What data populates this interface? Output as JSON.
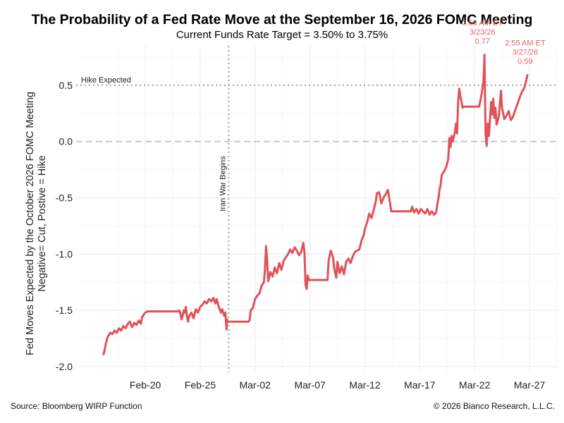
{
  "chart_data": {
    "type": "line",
    "title": "The Probability of a Fed Rate Move at the September 16, 2026 FOMC Meeting",
    "subtitle": "Current Funds Rate Target = 3.50% to 3.75%",
    "ylabel_line1": "Fed Moves Expected by the  October 2026 FOMC Meeting",
    "ylabel_line2": "Negative= Cut, Postive = Hike",
    "xlabel": "",
    "ylim": [
      -2.05,
      0.85
    ],
    "xlim_days": [
      -3.3,
      40.5
    ],
    "x_origin_date": "Feb-17",
    "y_ticks": [
      {
        "value": 0.5,
        "label": "0.5"
      },
      {
        "value": 0.0,
        "label": "0.0"
      },
      {
        "value": -0.5,
        "label": "-0.5"
      },
      {
        "value": -1.0,
        "label": "-1.0"
      },
      {
        "value": -1.5,
        "label": "-1.5"
      },
      {
        "value": -2.0,
        "label": "-2.0"
      }
    ],
    "x_ticks": [
      {
        "day": 3,
        "label": "Feb-20"
      },
      {
        "day": 8,
        "label": "Feb-25"
      },
      {
        "day": 13,
        "label": "Mar-02"
      },
      {
        "day": 18,
        "label": "Mar-07"
      },
      {
        "day": 23,
        "label": "Mar-12"
      },
      {
        "day": 28,
        "label": "Mar-17"
      },
      {
        "day": 33,
        "label": "Mar-22"
      },
      {
        "day": 38,
        "label": "Mar-27"
      }
    ],
    "grid": true,
    "line_color": "#e05259",
    "reference_lines": [
      {
        "orientation": "horizontal",
        "value": 0.5,
        "style": "dotted",
        "label": "Hike Expected"
      },
      {
        "orientation": "horizontal",
        "value": 0.0,
        "style": "dashed",
        "label": ""
      },
      {
        "orientation": "vertical",
        "day": 10.6,
        "style": "dotted",
        "label": "Iran War Begins"
      }
    ],
    "annotations": [
      {
        "day": 33.9,
        "value": 0.77,
        "lines": [
          "3:55 AM ET",
          "3/23/26",
          "0.77"
        ]
      },
      {
        "day": 37.8,
        "value": 0.59,
        "lines": [
          "2:55 AM ET",
          "3/27/26",
          "0.59"
        ]
      }
    ],
    "series": [
      {
        "name": "Fed moves expected",
        "points": [
          [
            -0.8,
            -1.89
          ],
          [
            -0.7,
            -1.85
          ],
          [
            -0.6,
            -1.8
          ],
          [
            -0.5,
            -1.76
          ],
          [
            -0.4,
            -1.73
          ],
          [
            -0.2,
            -1.7
          ],
          [
            0.0,
            -1.71
          ],
          [
            0.2,
            -1.68
          ],
          [
            0.4,
            -1.7
          ],
          [
            0.6,
            -1.66
          ],
          [
            0.8,
            -1.68
          ],
          [
            1.0,
            -1.64
          ],
          [
            1.2,
            -1.66
          ],
          [
            1.4,
            -1.62
          ],
          [
            1.6,
            -1.6
          ],
          [
            1.8,
            -1.65
          ],
          [
            2.0,
            -1.61
          ],
          [
            2.2,
            -1.63
          ],
          [
            2.4,
            -1.59
          ],
          [
            2.6,
            -1.62
          ],
          [
            2.7,
            -1.56
          ],
          [
            2.8,
            -1.55
          ],
          [
            2.9,
            -1.53
          ],
          [
            3.0,
            -1.52
          ],
          [
            3.2,
            -1.51
          ],
          [
            3.4,
            -1.51
          ],
          [
            5.0,
            -1.51
          ],
          [
            6.0,
            -1.51
          ],
          [
            6.1,
            -1.5
          ],
          [
            6.2,
            -1.53
          ],
          [
            6.3,
            -1.58
          ],
          [
            6.4,
            -1.55
          ],
          [
            6.5,
            -1.5
          ],
          [
            6.6,
            -1.52
          ],
          [
            6.7,
            -1.47
          ],
          [
            6.8,
            -1.56
          ],
          [
            6.9,
            -1.6
          ],
          [
            7.0,
            -1.55
          ],
          [
            7.2,
            -1.52
          ],
          [
            7.4,
            -1.57
          ],
          [
            7.6,
            -1.49
          ],
          [
            7.8,
            -1.52
          ],
          [
            8.0,
            -1.47
          ],
          [
            8.2,
            -1.45
          ],
          [
            8.4,
            -1.42
          ],
          [
            8.6,
            -1.44
          ],
          [
            8.8,
            -1.4
          ],
          [
            9.0,
            -1.42
          ],
          [
            9.2,
            -1.39
          ],
          [
            9.4,
            -1.44
          ],
          [
            9.5,
            -1.4
          ],
          [
            9.7,
            -1.47
          ],
          [
            9.9,
            -1.52
          ],
          [
            10.0,
            -1.49
          ],
          [
            10.2,
            -1.55
          ],
          [
            10.3,
            -1.52
          ],
          [
            10.4,
            -1.67
          ],
          [
            10.45,
            -1.58
          ],
          [
            10.5,
            -1.6
          ],
          [
            11.0,
            -1.6
          ],
          [
            12.4,
            -1.6
          ],
          [
            12.5,
            -1.59
          ],
          [
            12.6,
            -1.5
          ],
          [
            12.8,
            -1.48
          ],
          [
            13.0,
            -1.4
          ],
          [
            13.2,
            -1.37
          ],
          [
            13.4,
            -1.35
          ],
          [
            13.6,
            -1.28
          ],
          [
            13.8,
            -1.25
          ],
          [
            13.9,
            -1.14
          ],
          [
            14.0,
            -0.93
          ],
          [
            14.1,
            -1.06
          ],
          [
            14.2,
            -1.24
          ],
          [
            14.4,
            -1.16
          ],
          [
            14.6,
            -1.2
          ],
          [
            14.8,
            -1.12
          ],
          [
            15.0,
            -1.17
          ],
          [
            15.2,
            -1.08
          ],
          [
            15.4,
            -1.14
          ],
          [
            15.6,
            -1.06
          ],
          [
            15.8,
            -1.03
          ],
          [
            16.0,
            -1.0
          ],
          [
            16.2,
            -0.96
          ],
          [
            16.4,
            -0.99
          ],
          [
            16.6,
            -0.94
          ],
          [
            16.8,
            -0.97
          ],
          [
            17.0,
            -1.01
          ],
          [
            17.2,
            -0.98
          ],
          [
            17.4,
            -0.9
          ],
          [
            17.5,
            -0.99
          ],
          [
            17.6,
            -1.27
          ],
          [
            17.7,
            -1.31
          ],
          [
            17.8,
            -1.19
          ],
          [
            17.9,
            -1.23
          ],
          [
            18.0,
            -1.23
          ],
          [
            19.0,
            -1.23
          ],
          [
            19.6,
            -1.23
          ],
          [
            19.7,
            -1.06
          ],
          [
            19.8,
            -1.01
          ],
          [
            19.9,
            -0.97
          ],
          [
            20.1,
            -1.03
          ],
          [
            20.2,
            -1.12
          ],
          [
            20.4,
            -1.21
          ],
          [
            20.5,
            -1.07
          ],
          [
            20.7,
            -1.17
          ],
          [
            20.9,
            -1.11
          ],
          [
            21.1,
            -1.18
          ],
          [
            21.3,
            -1.07
          ],
          [
            21.5,
            -1.04
          ],
          [
            21.7,
            -1.08
          ],
          [
            21.9,
            -1.02
          ],
          [
            22.1,
            -0.98
          ],
          [
            22.3,
            -0.97
          ],
          [
            22.5,
            -0.96
          ],
          [
            22.7,
            -0.88
          ],
          [
            22.9,
            -0.83
          ],
          [
            23.0,
            -0.78
          ],
          [
            23.2,
            -0.72
          ],
          [
            23.4,
            -0.64
          ],
          [
            23.6,
            -0.68
          ],
          [
            23.8,
            -0.61
          ],
          [
            24.0,
            -0.53
          ],
          [
            24.1,
            -0.46
          ],
          [
            24.3,
            -0.45
          ],
          [
            24.5,
            -0.55
          ],
          [
            24.7,
            -0.5
          ],
          [
            24.9,
            -0.47
          ],
          [
            25.1,
            -0.43
          ],
          [
            25.3,
            -0.55
          ],
          [
            25.4,
            -0.62
          ],
          [
            25.5,
            -0.62
          ],
          [
            26.0,
            -0.62
          ],
          [
            27.0,
            -0.62
          ],
          [
            27.2,
            -0.62
          ],
          [
            27.3,
            -0.58
          ],
          [
            27.5,
            -0.63
          ],
          [
            27.7,
            -0.6
          ],
          [
            27.9,
            -0.64
          ],
          [
            28.1,
            -0.6
          ],
          [
            28.3,
            -0.62
          ],
          [
            28.5,
            -0.64
          ],
          [
            28.7,
            -0.6
          ],
          [
            28.9,
            -0.65
          ],
          [
            29.1,
            -0.62
          ],
          [
            29.3,
            -0.65
          ],
          [
            29.5,
            -0.63
          ],
          [
            29.6,
            -0.56
          ],
          [
            29.7,
            -0.51
          ],
          [
            29.8,
            -0.43
          ],
          [
            29.9,
            -0.39
          ],
          [
            30.0,
            -0.3
          ],
          [
            30.2,
            -0.27
          ],
          [
            30.4,
            -0.23
          ],
          [
            30.6,
            -0.16
          ],
          [
            30.7,
            0.03
          ],
          [
            30.8,
            -0.05
          ],
          [
            30.9,
            0.05
          ],
          [
            31.0,
            0.0
          ],
          [
            31.2,
            0.08
          ],
          [
            31.3,
            0.16
          ],
          [
            31.4,
            0.07
          ],
          [
            31.5,
            0.36
          ],
          [
            31.6,
            0.47
          ],
          [
            31.7,
            0.4
          ],
          [
            31.8,
            0.36
          ],
          [
            31.9,
            0.3
          ],
          [
            32.0,
            0.31
          ],
          [
            33.0,
            0.31
          ],
          [
            33.4,
            0.31
          ],
          [
            33.5,
            0.35
          ],
          [
            33.6,
            0.4
          ],
          [
            33.7,
            0.46
          ],
          [
            33.8,
            0.54
          ],
          [
            33.85,
            0.64
          ],
          [
            33.9,
            0.77
          ],
          [
            33.95,
            0.4
          ],
          [
            34.0,
            0.06
          ],
          [
            34.1,
            -0.04
          ],
          [
            34.2,
            0.16
          ],
          [
            34.3,
            0.05
          ],
          [
            34.4,
            0.19
          ],
          [
            34.5,
            0.35
          ],
          [
            34.6,
            0.24
          ],
          [
            34.7,
            0.38
          ],
          [
            34.8,
            0.21
          ],
          [
            34.9,
            0.3
          ],
          [
            35.0,
            0.15
          ],
          [
            35.2,
            0.22
          ],
          [
            35.4,
            0.45
          ],
          [
            35.5,
            0.3
          ],
          [
            35.7,
            0.2
          ],
          [
            35.9,
            0.23
          ],
          [
            36.1,
            0.27
          ],
          [
            36.3,
            0.19
          ],
          [
            36.5,
            0.22
          ],
          [
            36.7,
            0.28
          ],
          [
            36.9,
            0.33
          ],
          [
            37.1,
            0.39
          ],
          [
            37.3,
            0.44
          ],
          [
            37.5,
            0.47
          ],
          [
            37.7,
            0.54
          ],
          [
            37.8,
            0.59
          ]
        ]
      }
    ]
  },
  "footer": {
    "source": "Source: Bloomberg WIRP Function",
    "copyright": "© 2026 Bianco Research, L.L.C."
  }
}
